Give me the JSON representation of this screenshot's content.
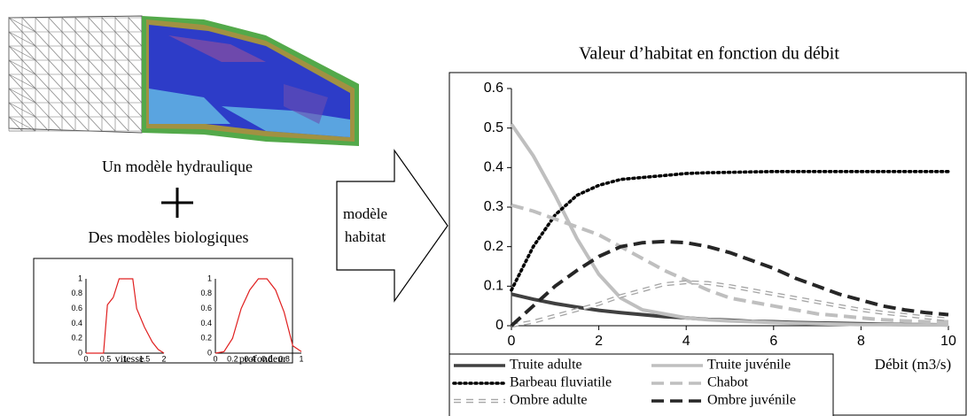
{
  "labels": {
    "hydraulic": "Un modèle hydraulique",
    "biological": "Des modèles biologiques",
    "arrow": [
      "modèle",
      "habitat"
    ]
  },
  "chart_data": [
    {
      "type": "line",
      "title": "Valeur d’habitat en fonction du débit",
      "x_label": "Débit (m3/s)",
      "xlim": [
        0,
        10
      ],
      "xticks": [
        0,
        2,
        4,
        6,
        8,
        10
      ],
      "ylim": [
        0,
        0.6
      ],
      "yticks": [
        0,
        0.1,
        0.2,
        0.3,
        0.4,
        0.5,
        0.6
      ],
      "grid": false,
      "legend": "bottom",
      "x": [
        0,
        0.5,
        1,
        1.5,
        2,
        2.5,
        3,
        3.5,
        4,
        4.5,
        5,
        5.5,
        6,
        6.5,
        7,
        7.5,
        8,
        8.5,
        9,
        9.5,
        10
      ],
      "series": [
        {
          "name": "Truite adulte",
          "color": "#404040",
          "style": "solid",
          "values": [
            0.08,
            0.067,
            0.056,
            0.047,
            0.039,
            0.033,
            0.028,
            0.023,
            0.02,
            0.016,
            0.014,
            0.011,
            0.01,
            0.008,
            0.007,
            0.006,
            0.005,
            0.004,
            0.003,
            0.003,
            0.002
          ]
        },
        {
          "name": "Truite juvénile",
          "color": "#bfbfbf",
          "style": "solid",
          "values": [
            0.51,
            0.43,
            0.33,
            0.22,
            0.13,
            0.07,
            0.04,
            0.03,
            0.02,
            0.015,
            0.012,
            0.01,
            0.008,
            0.006,
            0.005,
            0.004,
            0.003,
            0.003,
            0.002,
            0.002,
            0.002
          ]
        },
        {
          "name": "Barbeau fluviatile",
          "color": "#000000",
          "style": "dotted",
          "values": [
            0.09,
            0.2,
            0.28,
            0.33,
            0.355,
            0.37,
            0.375,
            0.38,
            0.385,
            0.387,
            0.388,
            0.389,
            0.39,
            0.39,
            0.39,
            0.39,
            0.39,
            0.39,
            0.39,
            0.39,
            0.39
          ]
        },
        {
          "name": "Chabot",
          "color": "#bfbfbf",
          "style": "dashed",
          "values": [
            0.305,
            0.29,
            0.27,
            0.25,
            0.23,
            0.2,
            0.17,
            0.14,
            0.115,
            0.09,
            0.07,
            0.06,
            0.05,
            0.04,
            0.03,
            0.025,
            0.02,
            0.015,
            0.012,
            0.01,
            0.01
          ]
        },
        {
          "name": "Ombre adulte",
          "color": "#a6a6a6",
          "style": "double",
          "values": [
            0,
            0.01,
            0.025,
            0.04,
            0.055,
            0.075,
            0.09,
            0.105,
            0.11,
            0.108,
            0.1,
            0.09,
            0.08,
            0.07,
            0.06,
            0.05,
            0.04,
            0.033,
            0.027,
            0.021,
            0.016
          ]
        },
        {
          "name": "Ombre juvénile",
          "color": "#262626",
          "style": "dashed",
          "values": [
            0,
            0.05,
            0.1,
            0.14,
            0.175,
            0.2,
            0.21,
            0.213,
            0.21,
            0.2,
            0.185,
            0.165,
            0.145,
            0.12,
            0.1,
            0.08,
            0.065,
            0.05,
            0.04,
            0.033,
            0.028
          ]
        }
      ]
    },
    {
      "type": "line",
      "x_label": "vitesse",
      "xlim": [
        0,
        2
      ],
      "xticks": [
        0,
        0.5,
        1,
        1.5,
        2
      ],
      "ylim": [
        0,
        1
      ],
      "yticks": [
        0,
        0.2,
        0.4,
        0.6,
        0.8,
        1
      ],
      "x": [
        0,
        0.45,
        0.55,
        0.7,
        0.85,
        1.2,
        1.3,
        1.5,
        1.7,
        1.85,
        2
      ],
      "series": [
        {
          "color": "#e02020",
          "style": "solid",
          "values": [
            0,
            0,
            0.65,
            0.75,
            1,
            1,
            0.6,
            0.35,
            0.15,
            0.05,
            0
          ]
        }
      ]
    },
    {
      "type": "line",
      "x_label": "profondeur",
      "xlim": [
        0,
        1
      ],
      "xticks": [
        0,
        0.2,
        0.4,
        0.6,
        0.8,
        1
      ],
      "ylim": [
        0,
        1
      ],
      "yticks": [
        0,
        0.2,
        0.4,
        0.6,
        0.8,
        1
      ],
      "x": [
        0,
        0.1,
        0.2,
        0.3,
        0.4,
        0.5,
        0.6,
        0.7,
        0.8,
        0.9,
        1
      ],
      "series": [
        {
          "color": "#e02020",
          "style": "solid",
          "values": [
            0,
            0.02,
            0.2,
            0.6,
            0.85,
            1,
            1,
            0.85,
            0.55,
            0.1,
            0.02
          ]
        }
      ]
    }
  ]
}
